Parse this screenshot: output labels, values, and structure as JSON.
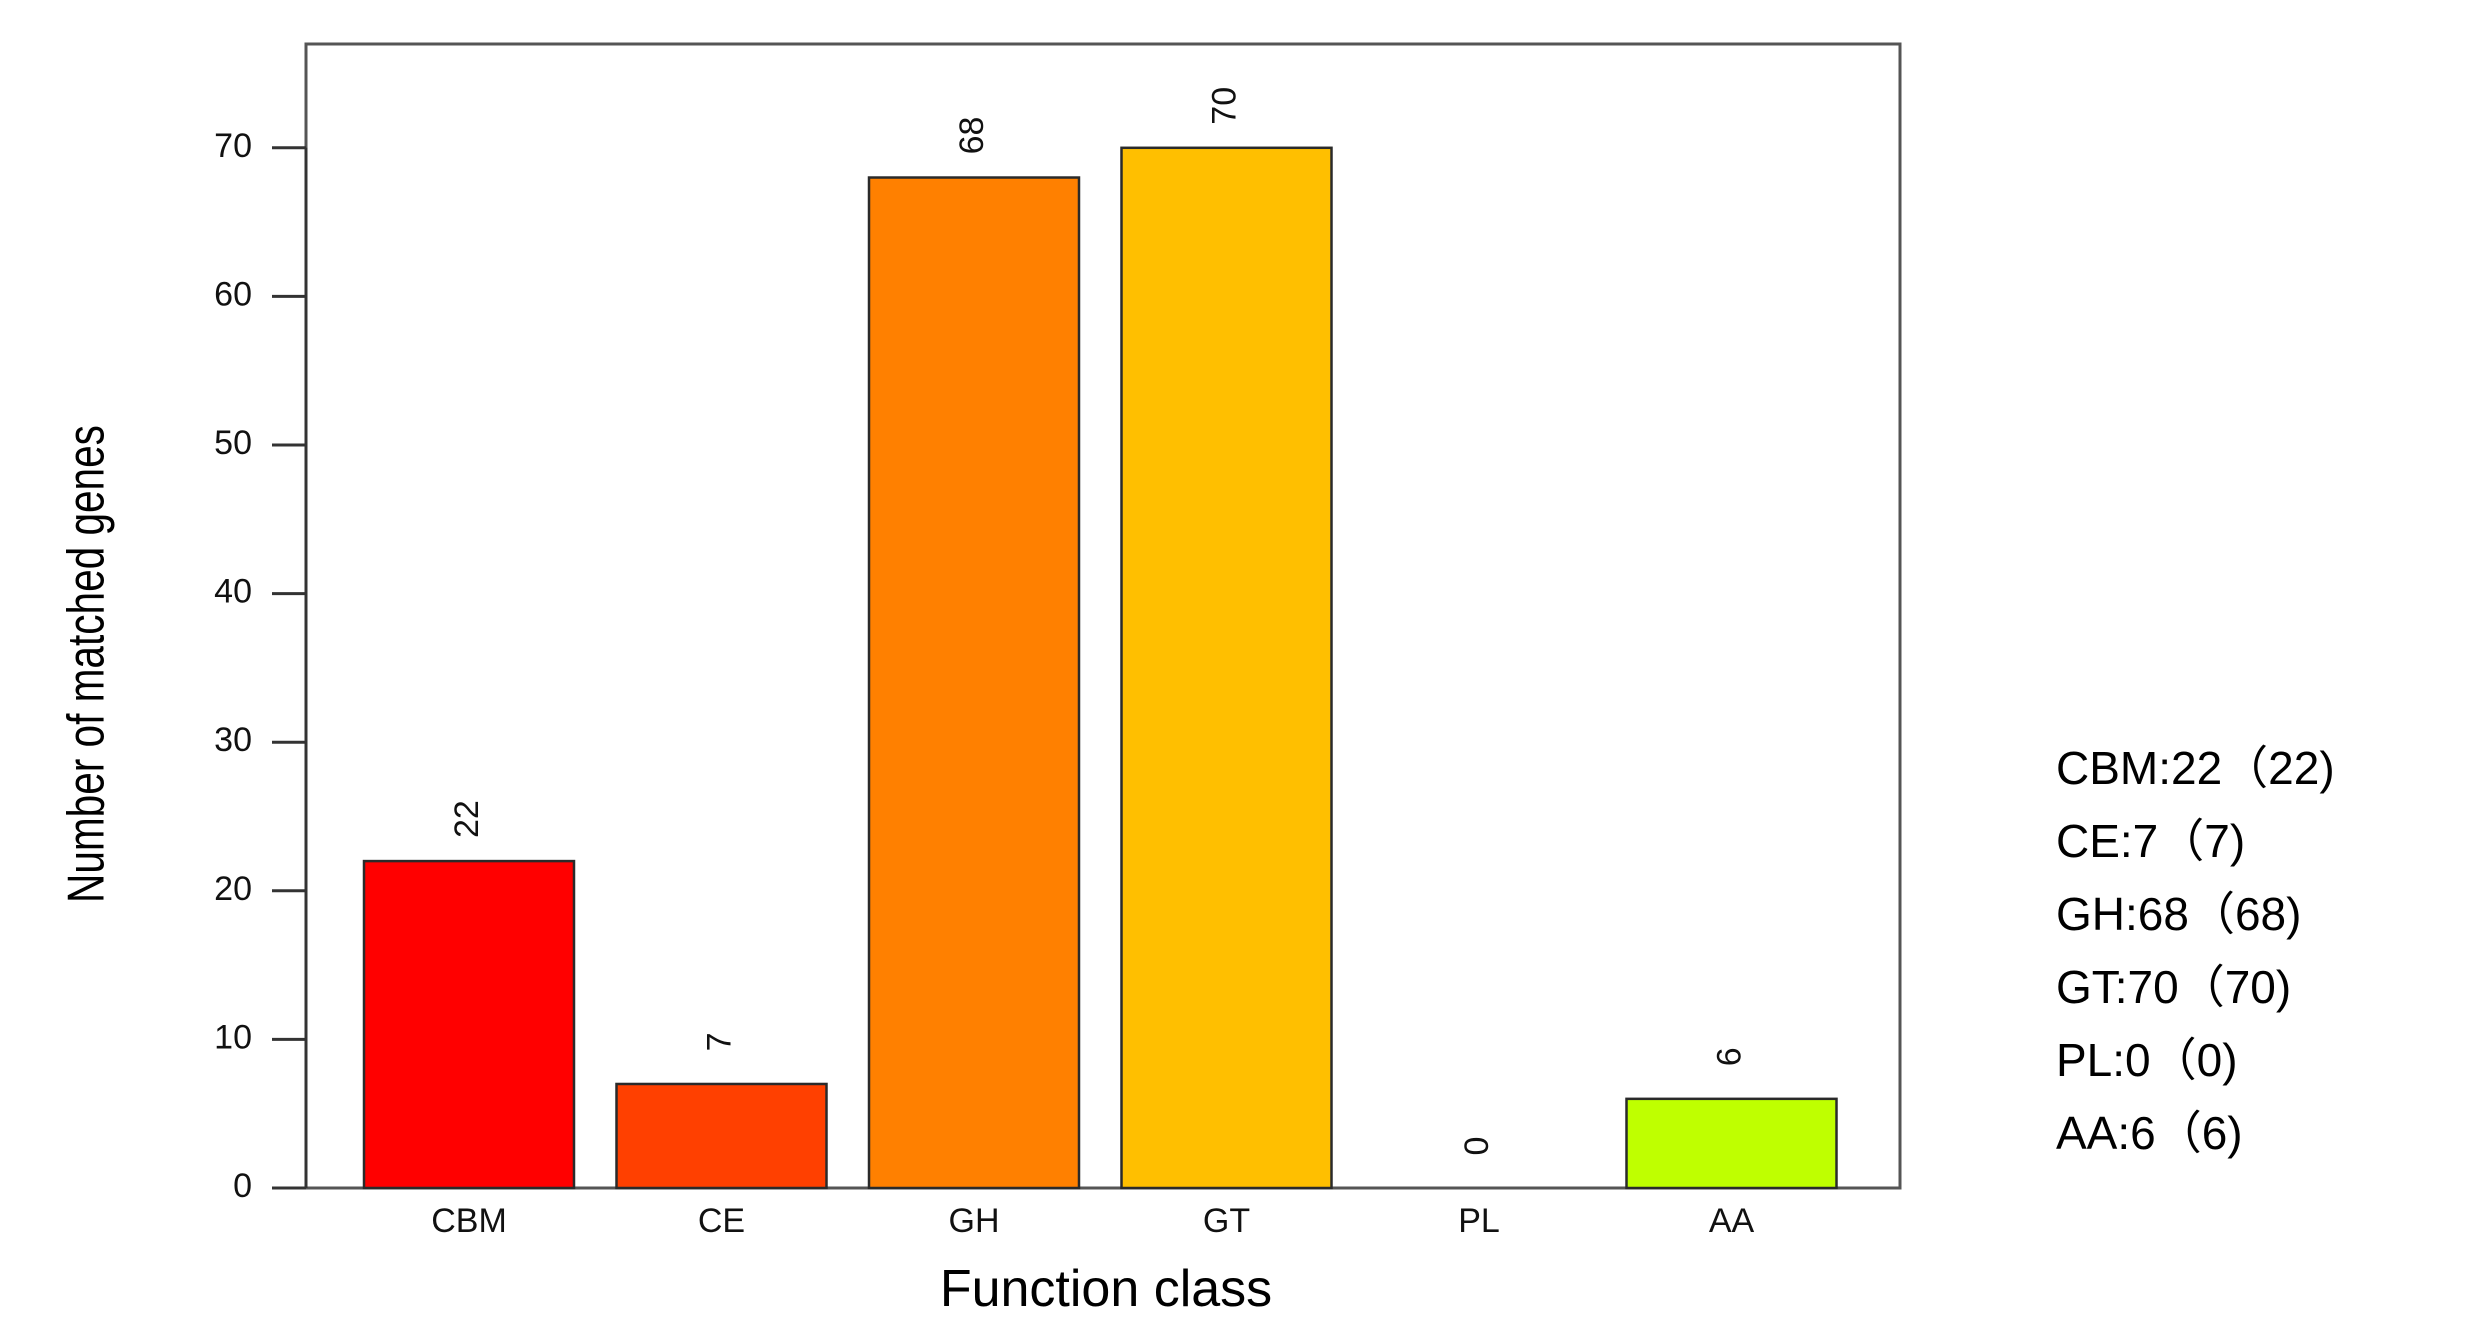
{
  "chart_data": {
    "type": "bar",
    "categories": [
      "CBM",
      "CE",
      "GH",
      "GT",
      "PL",
      "AA"
    ],
    "values": [
      22,
      7,
      68,
      70,
      0,
      6
    ],
    "value_labels": [
      "22",
      "7",
      "68",
      "70",
      "0",
      "6"
    ],
    "colors": [
      "#FF0000",
      "#FF4000",
      "#FF8000",
      "#FFBF00",
      "#FFFF00",
      "#BFFF00"
    ],
    "title": "",
    "xlabel": "Function class",
    "ylabel": "Number of matched genes",
    "ylim": [
      0,
      76
    ],
    "yticks": [
      0,
      10,
      20,
      30,
      40,
      50,
      60,
      70
    ],
    "ytick_labels": [
      "0",
      "10",
      "20",
      "30",
      "40",
      "50",
      "60",
      "70"
    ],
    "grid": false,
    "legend_position": "right",
    "legend_entries": [
      "CBM:22（22)",
      "CE:7（7)",
      "GH:68（68)",
      "GT:70（70)",
      "PL:0（0)",
      "AA:6（6)"
    ]
  }
}
